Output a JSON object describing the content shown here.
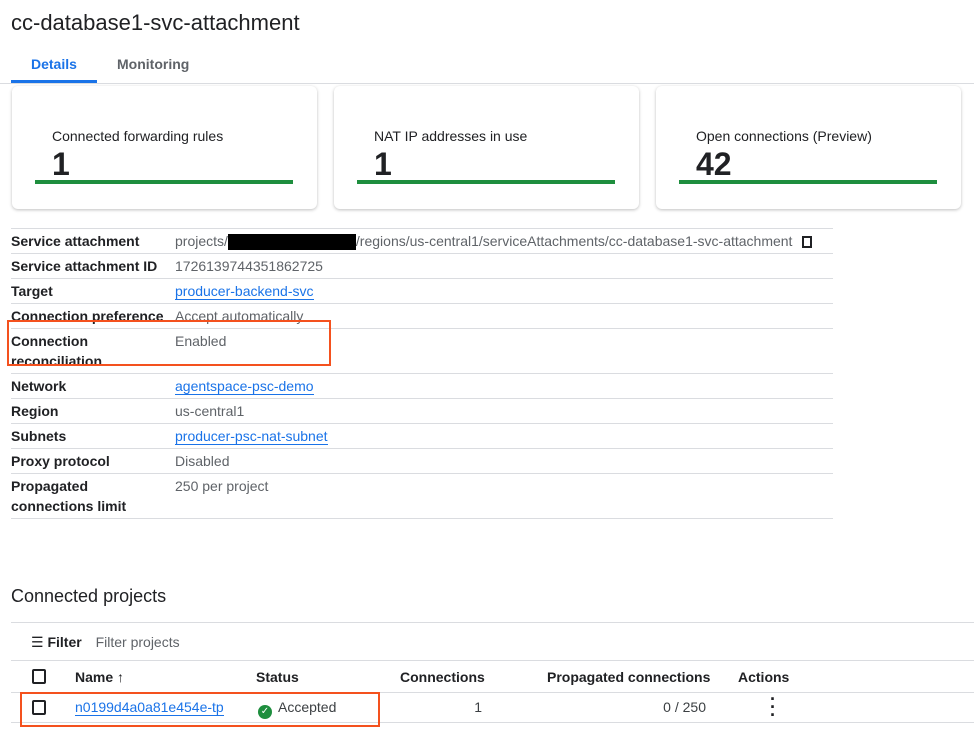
{
  "title": "cc-database1-svc-attachment",
  "tabs": [
    {
      "label": "Details",
      "active": true
    },
    {
      "label": "Monitoring",
      "active": false
    }
  ],
  "cards": [
    {
      "label": "Connected forwarding rules",
      "value": "1"
    },
    {
      "label": "NAT IP addresses in use",
      "value": "1"
    },
    {
      "label": "Open connections (Preview)",
      "value": "42"
    }
  ],
  "details": {
    "service_attachment": {
      "label": "Service attachment",
      "prefix": "projects/",
      "suffix": "/regions/us-central1/serviceAttachments/cc-database1-svc-attachment"
    },
    "id": {
      "label": "Service attachment ID",
      "value": "1726139744351862725"
    },
    "target": {
      "label": "Target",
      "value": "producer-backend-svc"
    },
    "conn_pref": {
      "label": "Connection preference",
      "value": "Accept automatically"
    },
    "conn_rec": {
      "label": "Connection reconciliation",
      "value": "Enabled"
    },
    "network": {
      "label": "Network",
      "value": "agentspace-psc-demo"
    },
    "region": {
      "label": "Region",
      "value": "us-central1"
    },
    "subnets": {
      "label": "Subnets",
      "value": "producer-psc-nat-subnet"
    },
    "proxy": {
      "label": "Proxy protocol",
      "value": "Disabled"
    },
    "prop_limit": {
      "label": "Propagated connections limit",
      "value": "250 per project"
    }
  },
  "connected_projects": {
    "heading": "Connected projects",
    "filter_label": "Filter",
    "filter_placeholder": "Filter projects",
    "columns": {
      "name": "Name",
      "sort": "↑",
      "status": "Status",
      "connections": "Connections",
      "propagated": "Propagated connections",
      "actions": "Actions"
    },
    "rows": [
      {
        "name": "n0199d4a0a81e454e-tp",
        "status": "Accepted",
        "connections": "1",
        "propagated": "0 / 250"
      }
    ]
  },
  "colors": {
    "accent": "#1a73e8",
    "success": "#1e8e3e",
    "highlight": "#f4511e"
  }
}
